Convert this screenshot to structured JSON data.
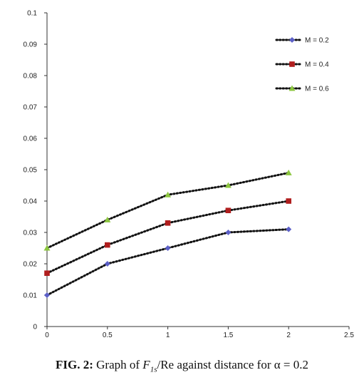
{
  "chart_data": {
    "type": "line",
    "x": [
      0,
      0.5,
      1,
      1.5,
      2
    ],
    "xticks": [
      "0",
      "0.5",
      "1",
      "1.5",
      "2",
      "2.5"
    ],
    "yticks": [
      "0",
      "0.01",
      "0.02",
      "0.03",
      "0.04",
      "0.05",
      "0.06",
      "0.07",
      "0.08",
      "0.09",
      "0.1"
    ],
    "xlim": [
      0,
      2.5
    ],
    "ylim": [
      0,
      0.1
    ],
    "grid": false,
    "legend_position": "top-right",
    "series": [
      {
        "name": "M = 0.2",
        "values": [
          0.01,
          0.02,
          0.025,
          0.03,
          0.031
        ],
        "color": "#5b5fc7",
        "marker": "diamond"
      },
      {
        "name": "M = 0.4",
        "values": [
          0.017,
          0.026,
          0.033,
          0.037,
          0.04
        ],
        "color": "#b01e1e",
        "marker": "square"
      },
      {
        "name": "M = 0.6",
        "values": [
          0.025,
          0.034,
          0.042,
          0.045,
          0.049
        ],
        "color": "#8cc63f",
        "marker": "triangle"
      }
    ],
    "line_color": "#111111",
    "line_style": "dotted"
  },
  "caption": {
    "label": "FIG. 2:",
    "text_before": "Graph of ",
    "symbol": "F",
    "symbol_sub": "1s",
    "text_after": "/Re against distance for α = 0.2"
  }
}
